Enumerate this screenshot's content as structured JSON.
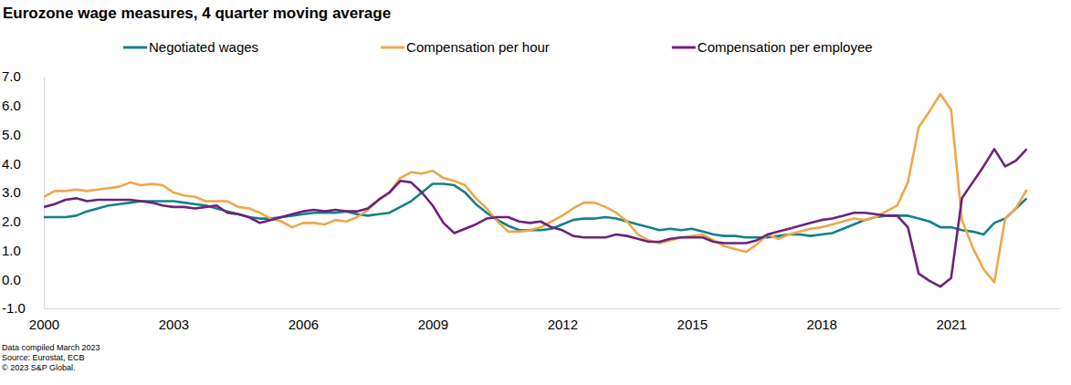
{
  "chart_data": {
    "type": "line",
    "title": "Eurozone wage measures, 4 quarter moving average",
    "annotations": [
      "Data compiled March 2023",
      "Source: Eurostat, ECB",
      "© 2023 S&P Global."
    ],
    "x": [
      2000,
      2000.25,
      2000.5,
      2000.75,
      2001,
      2001.25,
      2001.5,
      2001.75,
      2002,
      2002.25,
      2002.5,
      2002.75,
      2003,
      2003.25,
      2003.5,
      2003.75,
      2004,
      2004.25,
      2004.5,
      2004.75,
      2005,
      2005.25,
      2005.5,
      2005.75,
      2006,
      2006.25,
      2006.5,
      2006.75,
      2007,
      2007.25,
      2007.5,
      2007.75,
      2008,
      2008.25,
      2008.5,
      2008.75,
      2009,
      2009.25,
      2009.5,
      2009.75,
      2010,
      2010.25,
      2010.5,
      2010.75,
      2011,
      2011.25,
      2011.5,
      2011.75,
      2012,
      2012.25,
      2012.5,
      2012.75,
      2013,
      2013.25,
      2013.5,
      2013.75,
      2014,
      2014.25,
      2014.5,
      2014.75,
      2015,
      2015.25,
      2015.5,
      2015.75,
      2016,
      2016.25,
      2016.5,
      2016.75,
      2017,
      2017.25,
      2017.5,
      2017.75,
      2018,
      2018.25,
      2018.5,
      2018.75,
      2019,
      2019.25,
      2019.5,
      2019.75,
      2020,
      2020.25,
      2020.5,
      2020.75,
      2021,
      2021.25,
      2021.5,
      2021.75,
      2022,
      2022.25,
      2022.5,
      2022.75
    ],
    "series": [
      {
        "name": "Negotiated wages",
        "color": "#13808a",
        "values": [
          2.15,
          2.15,
          2.15,
          2.2,
          2.35,
          2.45,
          2.55,
          2.6,
          2.65,
          2.7,
          2.7,
          2.7,
          2.7,
          2.65,
          2.6,
          2.55,
          2.45,
          2.35,
          2.25,
          2.15,
          2.1,
          2.1,
          2.15,
          2.2,
          2.25,
          2.3,
          2.3,
          2.3,
          2.35,
          2.25,
          2.2,
          2.25,
          2.3,
          2.5,
          2.7,
          3.0,
          3.3,
          3.3,
          3.25,
          3.0,
          2.6,
          2.3,
          2.05,
          1.85,
          1.7,
          1.7,
          1.7,
          1.75,
          1.9,
          2.05,
          2.1,
          2.1,
          2.15,
          2.1,
          2.0,
          1.9,
          1.8,
          1.7,
          1.75,
          1.7,
          1.75,
          1.65,
          1.55,
          1.5,
          1.5,
          1.45,
          1.45,
          1.45,
          1.5,
          1.55,
          1.55,
          1.5,
          1.55,
          1.6,
          1.75,
          1.9,
          2.05,
          2.15,
          2.2,
          2.2,
          2.2,
          2.1,
          2.0,
          1.8,
          1.8,
          1.7,
          1.65,
          1.55,
          1.95,
          2.1,
          2.45,
          2.8
        ]
      },
      {
        "name": "Compensation per hour",
        "color": "#eda84a",
        "values": [
          2.85,
          3.05,
          3.05,
          3.1,
          3.05,
          3.1,
          3.15,
          3.2,
          3.35,
          3.25,
          3.3,
          3.25,
          3.0,
          2.9,
          2.85,
          2.7,
          2.7,
          2.7,
          2.5,
          2.45,
          2.3,
          2.1,
          2.0,
          1.8,
          1.95,
          1.95,
          1.9,
          2.05,
          2.0,
          2.15,
          2.4,
          2.75,
          3.0,
          3.5,
          3.7,
          3.65,
          3.75,
          3.5,
          3.4,
          3.25,
          2.8,
          2.45,
          2.0,
          1.65,
          1.65,
          1.7,
          1.8,
          2.0,
          2.2,
          2.45,
          2.65,
          2.65,
          2.5,
          2.3,
          2.0,
          1.55,
          1.35,
          1.25,
          1.35,
          1.45,
          1.5,
          1.55,
          1.35,
          1.15,
          1.05,
          0.95,
          1.2,
          1.55,
          1.4,
          1.55,
          1.65,
          1.75,
          1.8,
          1.9,
          2.0,
          2.1,
          2.05,
          2.15,
          2.35,
          2.55,
          3.35,
          5.25,
          5.8,
          6.4,
          5.85,
          2.05,
          1.1,
          0.35,
          -0.1,
          2.1,
          2.45,
          3.1
        ]
      },
      {
        "name": "Compensation per employee",
        "color": "#6b237a",
        "values": [
          2.5,
          2.6,
          2.75,
          2.8,
          2.7,
          2.75,
          2.75,
          2.75,
          2.75,
          2.7,
          2.65,
          2.55,
          2.5,
          2.5,
          2.45,
          2.5,
          2.55,
          2.3,
          2.25,
          2.15,
          1.95,
          2.05,
          2.15,
          2.25,
          2.35,
          2.4,
          2.35,
          2.4,
          2.35,
          2.35,
          2.45,
          2.75,
          3.0,
          3.4,
          3.35,
          3.0,
          2.55,
          1.95,
          1.6,
          1.75,
          1.9,
          2.1,
          2.15,
          2.15,
          2.0,
          1.95,
          2.0,
          1.8,
          1.7,
          1.5,
          1.45,
          1.45,
          1.45,
          1.55,
          1.5,
          1.4,
          1.3,
          1.3,
          1.4,
          1.45,
          1.45,
          1.45,
          1.3,
          1.25,
          1.25,
          1.25,
          1.35,
          1.55,
          1.65,
          1.75,
          1.85,
          1.95,
          2.05,
          2.1,
          2.2,
          2.3,
          2.3,
          2.25,
          2.2,
          2.2,
          1.8,
          0.2,
          -0.05,
          -0.25,
          0.05,
          2.8,
          3.35,
          3.9,
          4.5,
          3.9,
          4.1,
          4.5
        ]
      }
    ],
    "xlim": [
      2000,
      2023.5
    ],
    "xticks": [
      2000,
      2003,
      2006,
      2009,
      2012,
      2015,
      2018,
      2021
    ],
    "ylim": [
      -1,
      7
    ],
    "yticks": [
      {
        "value": -1,
        "label": "-1.0"
      },
      {
        "value": 0,
        "label": "0.0"
      },
      {
        "value": 1,
        "label": "1.0"
      },
      {
        "value": 2,
        "label": "2.0"
      },
      {
        "value": 3,
        "label": "3.0"
      },
      {
        "value": 4,
        "label": "4.0"
      },
      {
        "value": 5,
        "label": "5.0"
      },
      {
        "value": 6,
        "label": "6.0"
      },
      {
        "value": 7,
        "label": "7.0"
      }
    ],
    "grid": false,
    "legend": "top"
  }
}
